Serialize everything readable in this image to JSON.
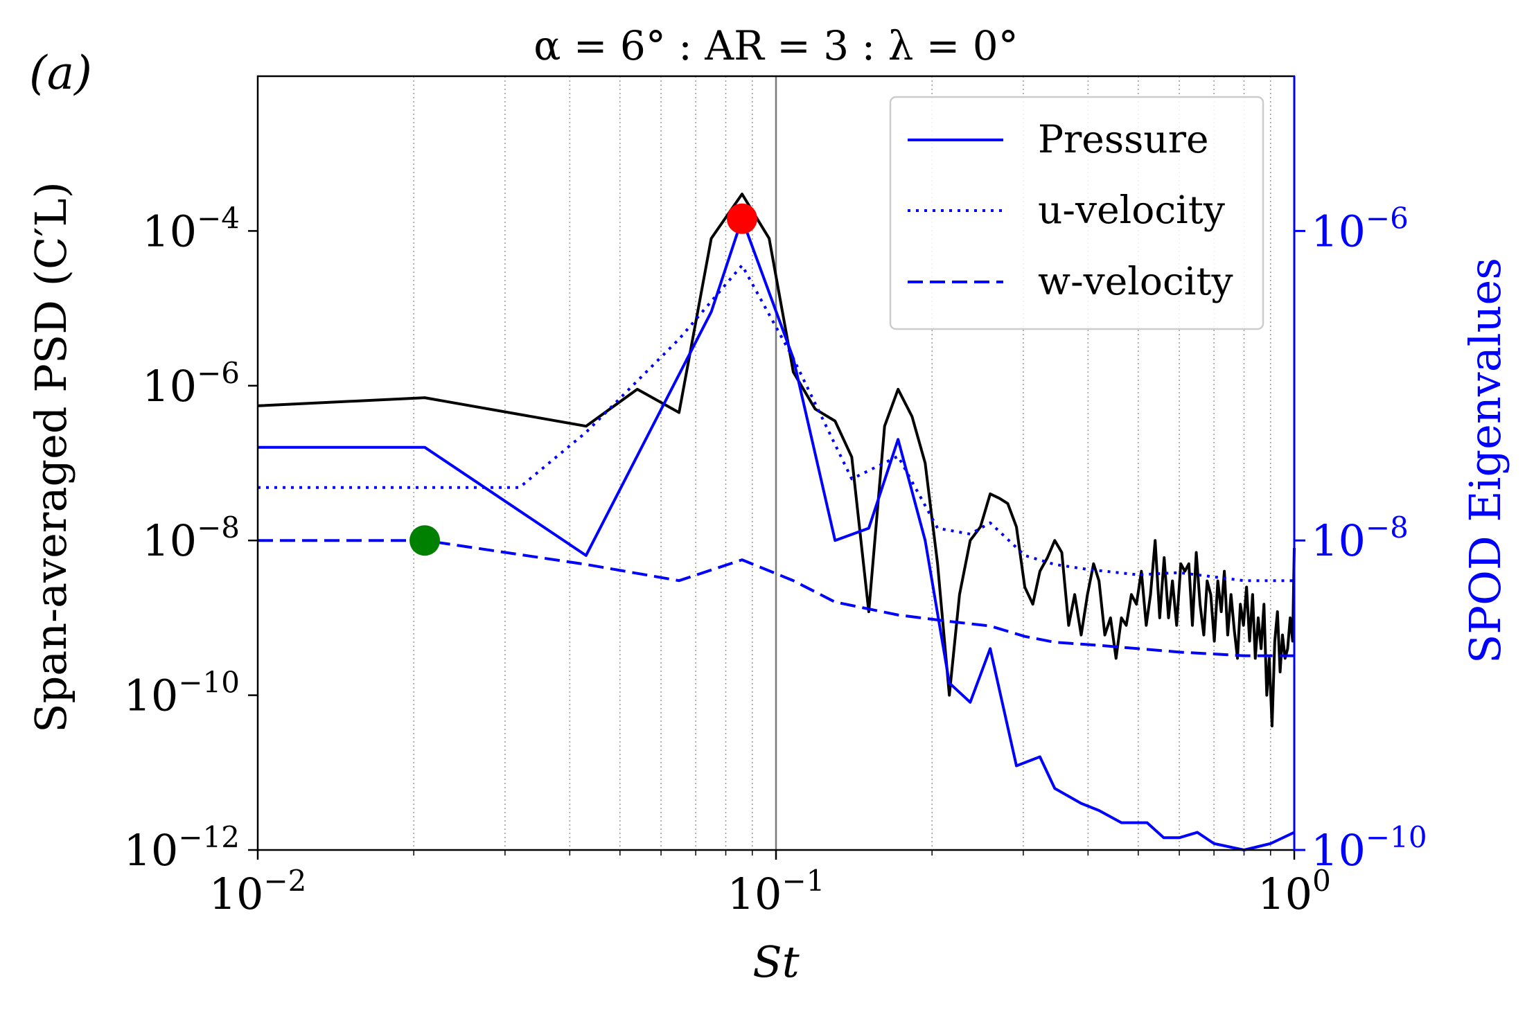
{
  "chart_data": {
    "type": "line",
    "panel_label": "(a)",
    "title": "α = 6° : AR = 3 : λ = 0°",
    "xlabel": "St",
    "ylabel_left": "Span-averaged PSD (C′L)",
    "ylabel_right": "SPOD Eigenvalues",
    "x_scale": "log",
    "xlim": [
      0.01,
      1.0
    ],
    "y_left_scale": "log",
    "y_left_lim": [
      1e-12,
      0.01
    ],
    "y_right_scale": "log",
    "y_right_lim": [
      1e-10,
      1e-05
    ],
    "x_ticks": [
      {
        "value": 0.01,
        "label": "10−2"
      },
      {
        "value": 0.1,
        "label": "10−1"
      },
      {
        "value": 1.0,
        "label": "100"
      }
    ],
    "y_left_ticks": [
      {
        "value": 1e-12,
        "label": "10−12"
      },
      {
        "value": 1e-10,
        "label": "10−10"
      },
      {
        "value": 1e-08,
        "label": "10−8"
      },
      {
        "value": 1e-06,
        "label": "10−6"
      },
      {
        "value": 0.0001,
        "label": "10−4"
      }
    ],
    "y_right_ticks": [
      {
        "value": 1e-10,
        "label": "10−10"
      },
      {
        "value": 1e-08,
        "label": "10−8"
      },
      {
        "value": 1e-06,
        "label": "10−6"
      }
    ],
    "vertical_reference_x": 0.1,
    "grid": "vertical minor dotted",
    "legend_position": "top-right",
    "colors": {
      "psd": "#000000",
      "spod": "#0000ff",
      "marker_red": "#ff0000",
      "marker_green": "#008000"
    },
    "psd_series": {
      "axis": "left",
      "points": [
        [
          0.01,
          5.5e-07
        ],
        [
          0.021,
          7e-07
        ],
        [
          0.043,
          3e-07
        ],
        [
          0.054,
          9e-07
        ],
        [
          0.065,
          4.5e-07
        ],
        [
          0.075,
          8e-05
        ],
        [
          0.086,
          0.0003
        ],
        [
          0.097,
          8e-05
        ],
        [
          0.108,
          1.5e-06
        ],
        [
          0.119,
          5e-07
        ],
        [
          0.13,
          3.5e-07
        ],
        [
          0.14,
          1.2e-07
        ],
        [
          0.151,
          1.2e-09
        ],
        [
          0.162,
          3e-07
        ],
        [
          0.172,
          9e-07
        ],
        [
          0.183,
          4e-07
        ],
        [
          0.194,
          1e-07
        ],
        [
          0.205,
          5e-09
        ],
        [
          0.216,
          1e-10
        ],
        [
          0.226,
          2e-09
        ],
        [
          0.237,
          1e-08
        ],
        [
          0.248,
          1.5e-08
        ],
        [
          0.259,
          4e-08
        ],
        [
          0.27,
          3.5e-08
        ],
        [
          0.28,
          3e-08
        ],
        [
          0.291,
          1.5e-08
        ],
        [
          0.302,
          2.5e-09
        ],
        [
          0.313,
          1.5e-09
        ],
        [
          0.323,
          4e-09
        ],
        [
          0.334,
          6e-09
        ],
        [
          0.345,
          1e-08
        ],
        [
          0.356,
          7e-09
        ],
        [
          0.367,
          8e-10
        ],
        [
          0.377,
          2e-09
        ],
        [
          0.388,
          6e-10
        ],
        [
          0.399,
          2e-09
        ],
        [
          0.41,
          5e-09
        ],
        [
          0.42,
          3e-09
        ],
        [
          0.431,
          6e-10
        ],
        [
          0.442,
          1e-09
        ],
        [
          0.453,
          3e-10
        ],
        [
          0.464,
          1e-09
        ],
        [
          0.474,
          8e-10
        ],
        [
          0.485,
          2e-09
        ],
        [
          0.496,
          1.5e-09
        ],
        [
          0.507,
          4e-09
        ],
        [
          0.518,
          8e-10
        ],
        [
          0.528,
          2e-09
        ],
        [
          0.539,
          1e-08
        ],
        [
          0.55,
          1e-09
        ],
        [
          0.561,
          6e-09
        ],
        [
          0.572,
          1e-09
        ],
        [
          0.582,
          3e-09
        ],
        [
          0.593,
          8e-10
        ],
        [
          0.604,
          5e-09
        ],
        [
          0.615,
          4e-09
        ],
        [
          0.626,
          5e-09
        ],
        [
          0.636,
          8e-10
        ],
        [
          0.647,
          7e-09
        ],
        [
          0.658,
          1.5e-09
        ],
        [
          0.669,
          6e-10
        ],
        [
          0.679,
          3e-09
        ],
        [
          0.69,
          2e-09
        ],
        [
          0.701,
          5e-10
        ],
        [
          0.712,
          3e-09
        ],
        [
          0.723,
          1.2e-09
        ],
        [
          0.733,
          4e-09
        ],
        [
          0.744,
          6e-10
        ],
        [
          0.755,
          2e-09
        ],
        [
          0.766,
          7e-10
        ],
        [
          0.777,
          3e-10
        ],
        [
          0.787,
          1.5e-09
        ],
        [
          0.798,
          8e-10
        ],
        [
          0.809,
          2.5e-09
        ],
        [
          0.82,
          5e-10
        ],
        [
          0.831,
          2e-09
        ],
        [
          0.841,
          3e-10
        ],
        [
          0.852,
          1e-09
        ],
        [
          0.863,
          4e-10
        ],
        [
          0.874,
          1.5e-09
        ],
        [
          0.885,
          1e-10
        ],
        [
          0.895,
          3e-10
        ],
        [
          0.906,
          4e-11
        ],
        [
          0.917,
          5e-10
        ],
        [
          0.928,
          1.2e-09
        ],
        [
          0.939,
          2e-10
        ],
        [
          0.949,
          6e-10
        ],
        [
          0.96,
          3e-10
        ],
        [
          0.971,
          4e-10
        ],
        [
          0.982,
          1e-09
        ],
        [
          0.993,
          5e-10
        ],
        [
          1.0,
          8e-09
        ]
      ]
    },
    "series": [
      {
        "name": "Pressure",
        "style": "solid",
        "axis": "right",
        "points": [
          [
            0.01,
            4e-08
          ],
          [
            0.021,
            4e-08
          ],
          [
            0.043,
            8e-09
          ],
          [
            0.075,
            3e-07
          ],
          [
            0.086,
            1.2e-06
          ],
          [
            0.108,
            1.5e-07
          ],
          [
            0.13,
            1e-08
          ],
          [
            0.151,
            1.2e-08
          ],
          [
            0.172,
            4.5e-08
          ],
          [
            0.194,
            1e-08
          ],
          [
            0.216,
            1.2e-09
          ],
          [
            0.237,
            9e-10
          ],
          [
            0.259,
            2e-09
          ],
          [
            0.291,
            3.5e-10
          ],
          [
            0.323,
            4e-10
          ],
          [
            0.345,
            2.5e-10
          ],
          [
            0.388,
            2e-10
          ],
          [
            0.42,
            1.8e-10
          ],
          [
            0.464,
            1.5e-10
          ],
          [
            0.52,
            1.5e-10
          ],
          [
            0.56,
            1.2e-10
          ],
          [
            0.6,
            1.2e-10
          ],
          [
            0.65,
            1.3e-10
          ],
          [
            0.7,
            1.1e-10
          ],
          [
            0.8,
            1e-10
          ],
          [
            0.9,
            1.1e-10
          ],
          [
            1.0,
            1.3e-10
          ]
        ]
      },
      {
        "name": "u-velocity",
        "style": "dotted",
        "axis": "right",
        "points": [
          [
            0.01,
            2.2e-08
          ],
          [
            0.032,
            2.2e-08
          ],
          [
            0.043,
            5e-08
          ],
          [
            0.065,
            2e-07
          ],
          [
            0.086,
            6e-07
          ],
          [
            0.108,
            1.5e-07
          ],
          [
            0.14,
            2.5e-08
          ],
          [
            0.172,
            3.5e-08
          ],
          [
            0.205,
            1.2e-08
          ],
          [
            0.237,
            1.1e-08
          ],
          [
            0.259,
            1.3e-08
          ],
          [
            0.302,
            8e-09
          ],
          [
            0.345,
            7e-09
          ],
          [
            0.4,
            6.5e-09
          ],
          [
            0.5,
            6e-09
          ],
          [
            0.6,
            6.2e-09
          ],
          [
            0.8,
            5.5e-09
          ],
          [
            1.0,
            5.5e-09
          ]
        ]
      },
      {
        "name": "w-velocity",
        "style": "dashed",
        "axis": "right",
        "points": [
          [
            0.01,
            1e-08
          ],
          [
            0.021,
            1e-08
          ],
          [
            0.043,
            7e-09
          ],
          [
            0.065,
            5.5e-09
          ],
          [
            0.086,
            7.5e-09
          ],
          [
            0.108,
            5.5e-09
          ],
          [
            0.13,
            4e-09
          ],
          [
            0.172,
            3.3e-09
          ],
          [
            0.216,
            3e-09
          ],
          [
            0.259,
            2.8e-09
          ],
          [
            0.302,
            2.4e-09
          ],
          [
            0.345,
            2.2e-09
          ],
          [
            0.42,
            2.1e-09
          ],
          [
            0.5,
            2e-09
          ],
          [
            0.6,
            1.9e-09
          ],
          [
            0.8,
            1.8e-09
          ],
          [
            1.0,
            1.8e-09
          ]
        ]
      }
    ],
    "markers": [
      {
        "x": 0.086,
        "y": 1.2e-06,
        "axis": "right",
        "color": "#ff0000"
      },
      {
        "x": 0.021,
        "y": 1e-08,
        "axis": "right",
        "color": "#008000"
      }
    ]
  }
}
